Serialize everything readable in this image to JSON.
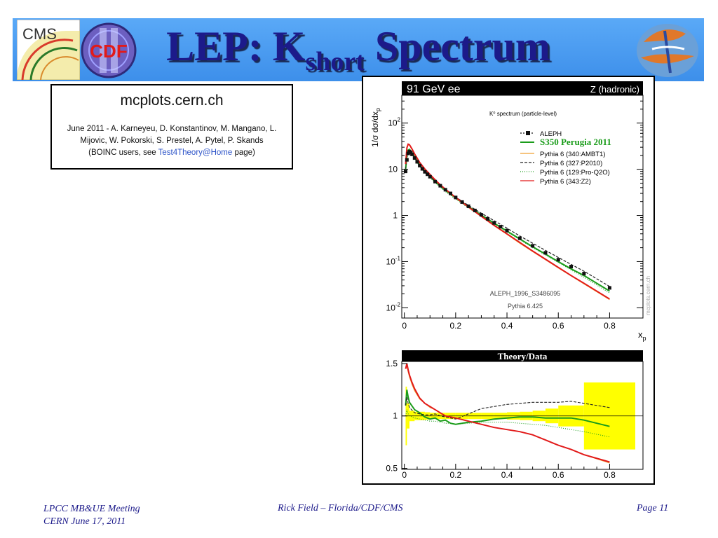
{
  "slide": {
    "title_main": "LEP: K",
    "title_sub": "short",
    "title_tail": " Spectrum",
    "logo_cms": "CMS",
    "logo_cdf": "CDF"
  },
  "credit": {
    "site": "mcplots.cern.ch",
    "line1": "June 2011 - A. Karneyeu, D. Konstantinov, M. Mangano, L.",
    "line2": "Mijovic, W. Pokorski, S. Prestel, A. Pytel, P. Skands",
    "line3_prefix": "(BOINC users, see ",
    "line3_link": "Test4Theory@Home",
    "line3_suffix": " page)"
  },
  "footer": {
    "left1": "LPCC MB&UE Meeting",
    "left2": "CERN June 17, 2011",
    "center": "Rick Field – Florida/CDF/CMS",
    "right": "Page 11"
  },
  "chart_data": [
    {
      "type": "line",
      "header_left": "91 GeV ee",
      "header_right": "Z (hadronic)",
      "title": "K⁰ spectrum (particle-level)",
      "ylabel": "1/σ  dσ/dx",
      "ylabel_sub": "p",
      "xlabel": "x",
      "xlabel_sub": "p",
      "yscale": "log",
      "xlim": [
        -0.01,
        0.93
      ],
      "ylim": [
        0.006,
        400
      ],
      "xticks": [
        "0",
        "0.2",
        "0.4",
        "0.6",
        "0.8"
      ],
      "yticks": [
        {
          "base": "10",
          "exp": "2",
          "v": 100
        },
        {
          "base": "10",
          "exp": "",
          "v": 10
        },
        {
          "base": "1",
          "exp": "",
          "v": 1
        },
        {
          "base": "10",
          "exp": "-1",
          "v": 0.1
        },
        {
          "base": "10",
          "exp": "-2",
          "v": 0.01
        }
      ],
      "annotation1": "ALEPH_1996_S3486095",
      "annotation2": "Pythia 6.425",
      "watermark": "mcplots.cern.ch",
      "legend_position": "top-right",
      "data": {
        "name": "ALEPH",
        "x": [
          0.005,
          0.01,
          0.015,
          0.02,
          0.025,
          0.03,
          0.04,
          0.05,
          0.06,
          0.07,
          0.08,
          0.09,
          0.1,
          0.12,
          0.14,
          0.16,
          0.18,
          0.2,
          0.225,
          0.25,
          0.275,
          0.3,
          0.325,
          0.35,
          0.375,
          0.4,
          0.45,
          0.5,
          0.55,
          0.6,
          0.65,
          0.7,
          0.8
        ],
        "y": [
          9.0,
          16.0,
          22.0,
          24.0,
          23.0,
          21.0,
          17.5,
          14.5,
          12.0,
          10.2,
          8.8,
          7.8,
          6.9,
          5.4,
          4.4,
          3.6,
          3.0,
          2.45,
          1.95,
          1.58,
          1.28,
          1.03,
          0.84,
          0.69,
          0.57,
          0.47,
          0.32,
          0.22,
          0.155,
          0.11,
          0.078,
          0.055,
          0.027
        ]
      },
      "series": [
        {
          "name": "S350 Perugia 2011",
          "color": "#1a9c1a",
          "x": [
            0.005,
            0.01,
            0.015,
            0.02,
            0.03,
            0.04,
            0.05,
            0.06,
            0.08,
            0.1,
            0.12,
            0.14,
            0.16,
            0.2,
            0.25,
            0.3,
            0.35,
            0.4,
            0.45,
            0.5,
            0.55,
            0.6,
            0.65,
            0.7,
            0.8
          ],
          "y": [
            10.0,
            20.0,
            26.0,
            27.0,
            23.0,
            18.5,
            15.0,
            12.3,
            9.0,
            7.0,
            5.4,
            4.3,
            3.5,
            2.4,
            1.55,
            1.02,
            0.68,
            0.46,
            0.31,
            0.21,
            0.145,
            0.1,
            0.07,
            0.05,
            0.023
          ]
        },
        {
          "name": "Pythia 6 (340:AMBT1)",
          "color": "#f0a030",
          "x": [
            0.005,
            0.01,
            0.015,
            0.02,
            0.03,
            0.04,
            0.05,
            0.06,
            0.08,
            0.1,
            0.12,
            0.14,
            0.16,
            0.2,
            0.25,
            0.3,
            0.35,
            0.4,
            0.45,
            0.5,
            0.55,
            0.6,
            0.65,
            0.7,
            0.8
          ],
          "y": [
            13.0,
            28.0,
            34.0,
            33.0,
            27.0,
            21.0,
            17.0,
            13.8,
            10.0,
            7.6,
            5.8,
            4.5,
            3.6,
            2.4,
            1.5,
            0.95,
            0.6,
            0.39,
            0.25,
            0.165,
            0.11,
            0.073,
            0.049,
            0.033,
            0.015
          ]
        },
        {
          "name": "Pythia 6 (327:P2010)",
          "color": "#222222",
          "dash": "4,2",
          "x": [
            0.005,
            0.01,
            0.015,
            0.02,
            0.03,
            0.04,
            0.05,
            0.06,
            0.08,
            0.1,
            0.12,
            0.14,
            0.16,
            0.2,
            0.25,
            0.3,
            0.35,
            0.4,
            0.45,
            0.5,
            0.55,
            0.6,
            0.65,
            0.7,
            0.8
          ],
          "y": [
            10.0,
            19.0,
            24.0,
            25.0,
            22.0,
            18.0,
            14.8,
            12.2,
            8.9,
            7.0,
            5.5,
            4.4,
            3.6,
            2.5,
            1.65,
            1.12,
            0.77,
            0.53,
            0.36,
            0.25,
            0.175,
            0.123,
            0.087,
            0.062,
            0.029
          ]
        },
        {
          "name": "Pythia 6 (129:Pro-Q2O)",
          "color": "#1a9c1a",
          "dash": "1,2",
          "x": [
            0.005,
            0.01,
            0.015,
            0.02,
            0.03,
            0.04,
            0.05,
            0.06,
            0.08,
            0.1,
            0.12,
            0.14,
            0.16,
            0.2,
            0.25,
            0.3,
            0.35,
            0.4,
            0.45,
            0.5,
            0.55,
            0.6,
            0.65,
            0.7,
            0.8
          ],
          "y": [
            9.0,
            17.0,
            22.0,
            23.0,
            21.0,
            17.0,
            14.0,
            11.5,
            8.5,
            6.6,
            5.1,
            4.1,
            3.3,
            2.25,
            1.45,
            0.97,
            0.65,
            0.44,
            0.3,
            0.2,
            0.14,
            0.096,
            0.066,
            0.046,
            0.021
          ]
        },
        {
          "name": "Pythia 6 (343:Z2)",
          "color": "#e21a1a",
          "x": [
            0.005,
            0.01,
            0.015,
            0.02,
            0.03,
            0.04,
            0.05,
            0.06,
            0.08,
            0.1,
            0.12,
            0.14,
            0.16,
            0.2,
            0.25,
            0.3,
            0.35,
            0.4,
            0.45,
            0.5,
            0.55,
            0.6,
            0.65,
            0.7,
            0.8
          ],
          "y": [
            13.0,
            29.0,
            35.0,
            34.0,
            27.5,
            21.5,
            17.3,
            14.0,
            10.1,
            7.7,
            5.9,
            4.6,
            3.7,
            2.45,
            1.52,
            0.96,
            0.61,
            0.4,
            0.26,
            0.17,
            0.113,
            0.075,
            0.05,
            0.034,
            0.0155
          ]
        }
      ]
    },
    {
      "type": "line",
      "title": "Theory/Data",
      "xlim": [
        -0.01,
        0.93
      ],
      "ylim": [
        0.49,
        1.52
      ],
      "xticks": [
        "0",
        "0.2",
        "0.4",
        "0.6",
        "0.8"
      ],
      "yticks": [
        "0.5",
        "1",
        "1.5"
      ],
      "band": {
        "x_edges": [
          0.005,
          0.01,
          0.02,
          0.04,
          0.06,
          0.08,
          0.1,
          0.12,
          0.16,
          0.2,
          0.25,
          0.3,
          0.35,
          0.4,
          0.45,
          0.5,
          0.55,
          0.6,
          0.7,
          0.9
        ],
        "half_width": [
          0.28,
          0.12,
          0.05,
          0.04,
          0.04,
          0.035,
          0.03,
          0.03,
          0.03,
          0.03,
          0.03,
          0.03,
          0.03,
          0.035,
          0.04,
          0.05,
          0.07,
          0.1,
          0.32
        ]
      },
      "series": [
        {
          "name": "S350 Perugia 2011",
          "color": "#1a9c1a",
          "x": [
            0.005,
            0.01,
            0.015,
            0.02,
            0.04,
            0.06,
            0.08,
            0.1,
            0.12,
            0.14,
            0.16,
            0.18,
            0.2,
            0.25,
            0.3,
            0.35,
            0.4,
            0.45,
            0.5,
            0.55,
            0.6,
            0.65,
            0.7,
            0.8
          ],
          "y": [
            1.1,
            1.25,
            1.18,
            1.13,
            1.06,
            1.03,
            0.99,
            0.97,
            0.98,
            0.95,
            0.96,
            0.93,
            0.92,
            0.94,
            0.95,
            0.97,
            0.98,
            0.99,
            0.99,
            0.98,
            0.98,
            0.98,
            0.96,
            0.9
          ]
        },
        {
          "name": "Pythia 6 (340:AMBT1)",
          "color": "#f0a030",
          "x": [
            0.005,
            0.01,
            0.015,
            0.02,
            0.03,
            0.04,
            0.06,
            0.08,
            0.1,
            0.12,
            0.14,
            0.16,
            0.18,
            0.2,
            0.25,
            0.3,
            0.35,
            0.4,
            0.45,
            0.5,
            0.55,
            0.6,
            0.65,
            0.7,
            0.8
          ],
          "y": [
            1.45,
            1.48,
            1.42,
            1.37,
            1.3,
            1.24,
            1.16,
            1.12,
            1.08,
            1.06,
            1.03,
            1.0,
            0.99,
            0.98,
            0.95,
            0.92,
            0.89,
            0.87,
            0.85,
            0.82,
            0.77,
            0.72,
            0.68,
            0.63,
            0.55
          ]
        },
        {
          "name": "Pythia 6 (327:P2010)",
          "color": "#222222",
          "dash": "4,2",
          "x": [
            0.005,
            0.01,
            0.015,
            0.02,
            0.04,
            0.06,
            0.08,
            0.1,
            0.12,
            0.14,
            0.16,
            0.18,
            0.2,
            0.25,
            0.3,
            0.35,
            0.4,
            0.45,
            0.5,
            0.55,
            0.6,
            0.65,
            0.7,
            0.8
          ],
          "y": [
            1.1,
            1.18,
            1.12,
            1.08,
            1.03,
            1.02,
            1.01,
            1.01,
            1.02,
            1.0,
            0.99,
            0.98,
            0.97,
            1.02,
            1.07,
            1.09,
            1.11,
            1.12,
            1.13,
            1.13,
            1.13,
            1.14,
            1.12,
            1.08
          ]
        },
        {
          "name": "Pythia 6 (129:Pro-Q2O)",
          "color": "#1a9c1a",
          "dash": "1,2",
          "x": [
            0.005,
            0.01,
            0.015,
            0.02,
            0.04,
            0.06,
            0.08,
            0.1,
            0.12,
            0.14,
            0.16,
            0.18,
            0.2,
            0.25,
            0.3,
            0.35,
            0.4,
            0.45,
            0.5,
            0.55,
            0.6,
            0.65,
            0.7,
            0.8
          ],
          "y": [
            1.0,
            1.06,
            1.02,
            1.0,
            0.98,
            0.97,
            0.96,
            0.95,
            0.95,
            0.94,
            0.93,
            0.93,
            0.92,
            0.93,
            0.94,
            0.94,
            0.94,
            0.93,
            0.92,
            0.91,
            0.89,
            0.87,
            0.85,
            0.8
          ]
        },
        {
          "name": "Pythia 6 (343:Z2)",
          "color": "#e21a1a",
          "x": [
            0.005,
            0.01,
            0.015,
            0.02,
            0.03,
            0.04,
            0.06,
            0.08,
            0.1,
            0.12,
            0.14,
            0.16,
            0.18,
            0.2,
            0.25,
            0.3,
            0.35,
            0.4,
            0.45,
            0.5,
            0.55,
            0.6,
            0.65,
            0.7,
            0.8
          ],
          "y": [
            1.45,
            1.5,
            1.44,
            1.39,
            1.32,
            1.26,
            1.17,
            1.12,
            1.09,
            1.06,
            1.03,
            1.0,
            0.99,
            0.98,
            0.95,
            0.92,
            0.89,
            0.87,
            0.85,
            0.82,
            0.77,
            0.72,
            0.68,
            0.63,
            0.56
          ]
        }
      ]
    }
  ]
}
